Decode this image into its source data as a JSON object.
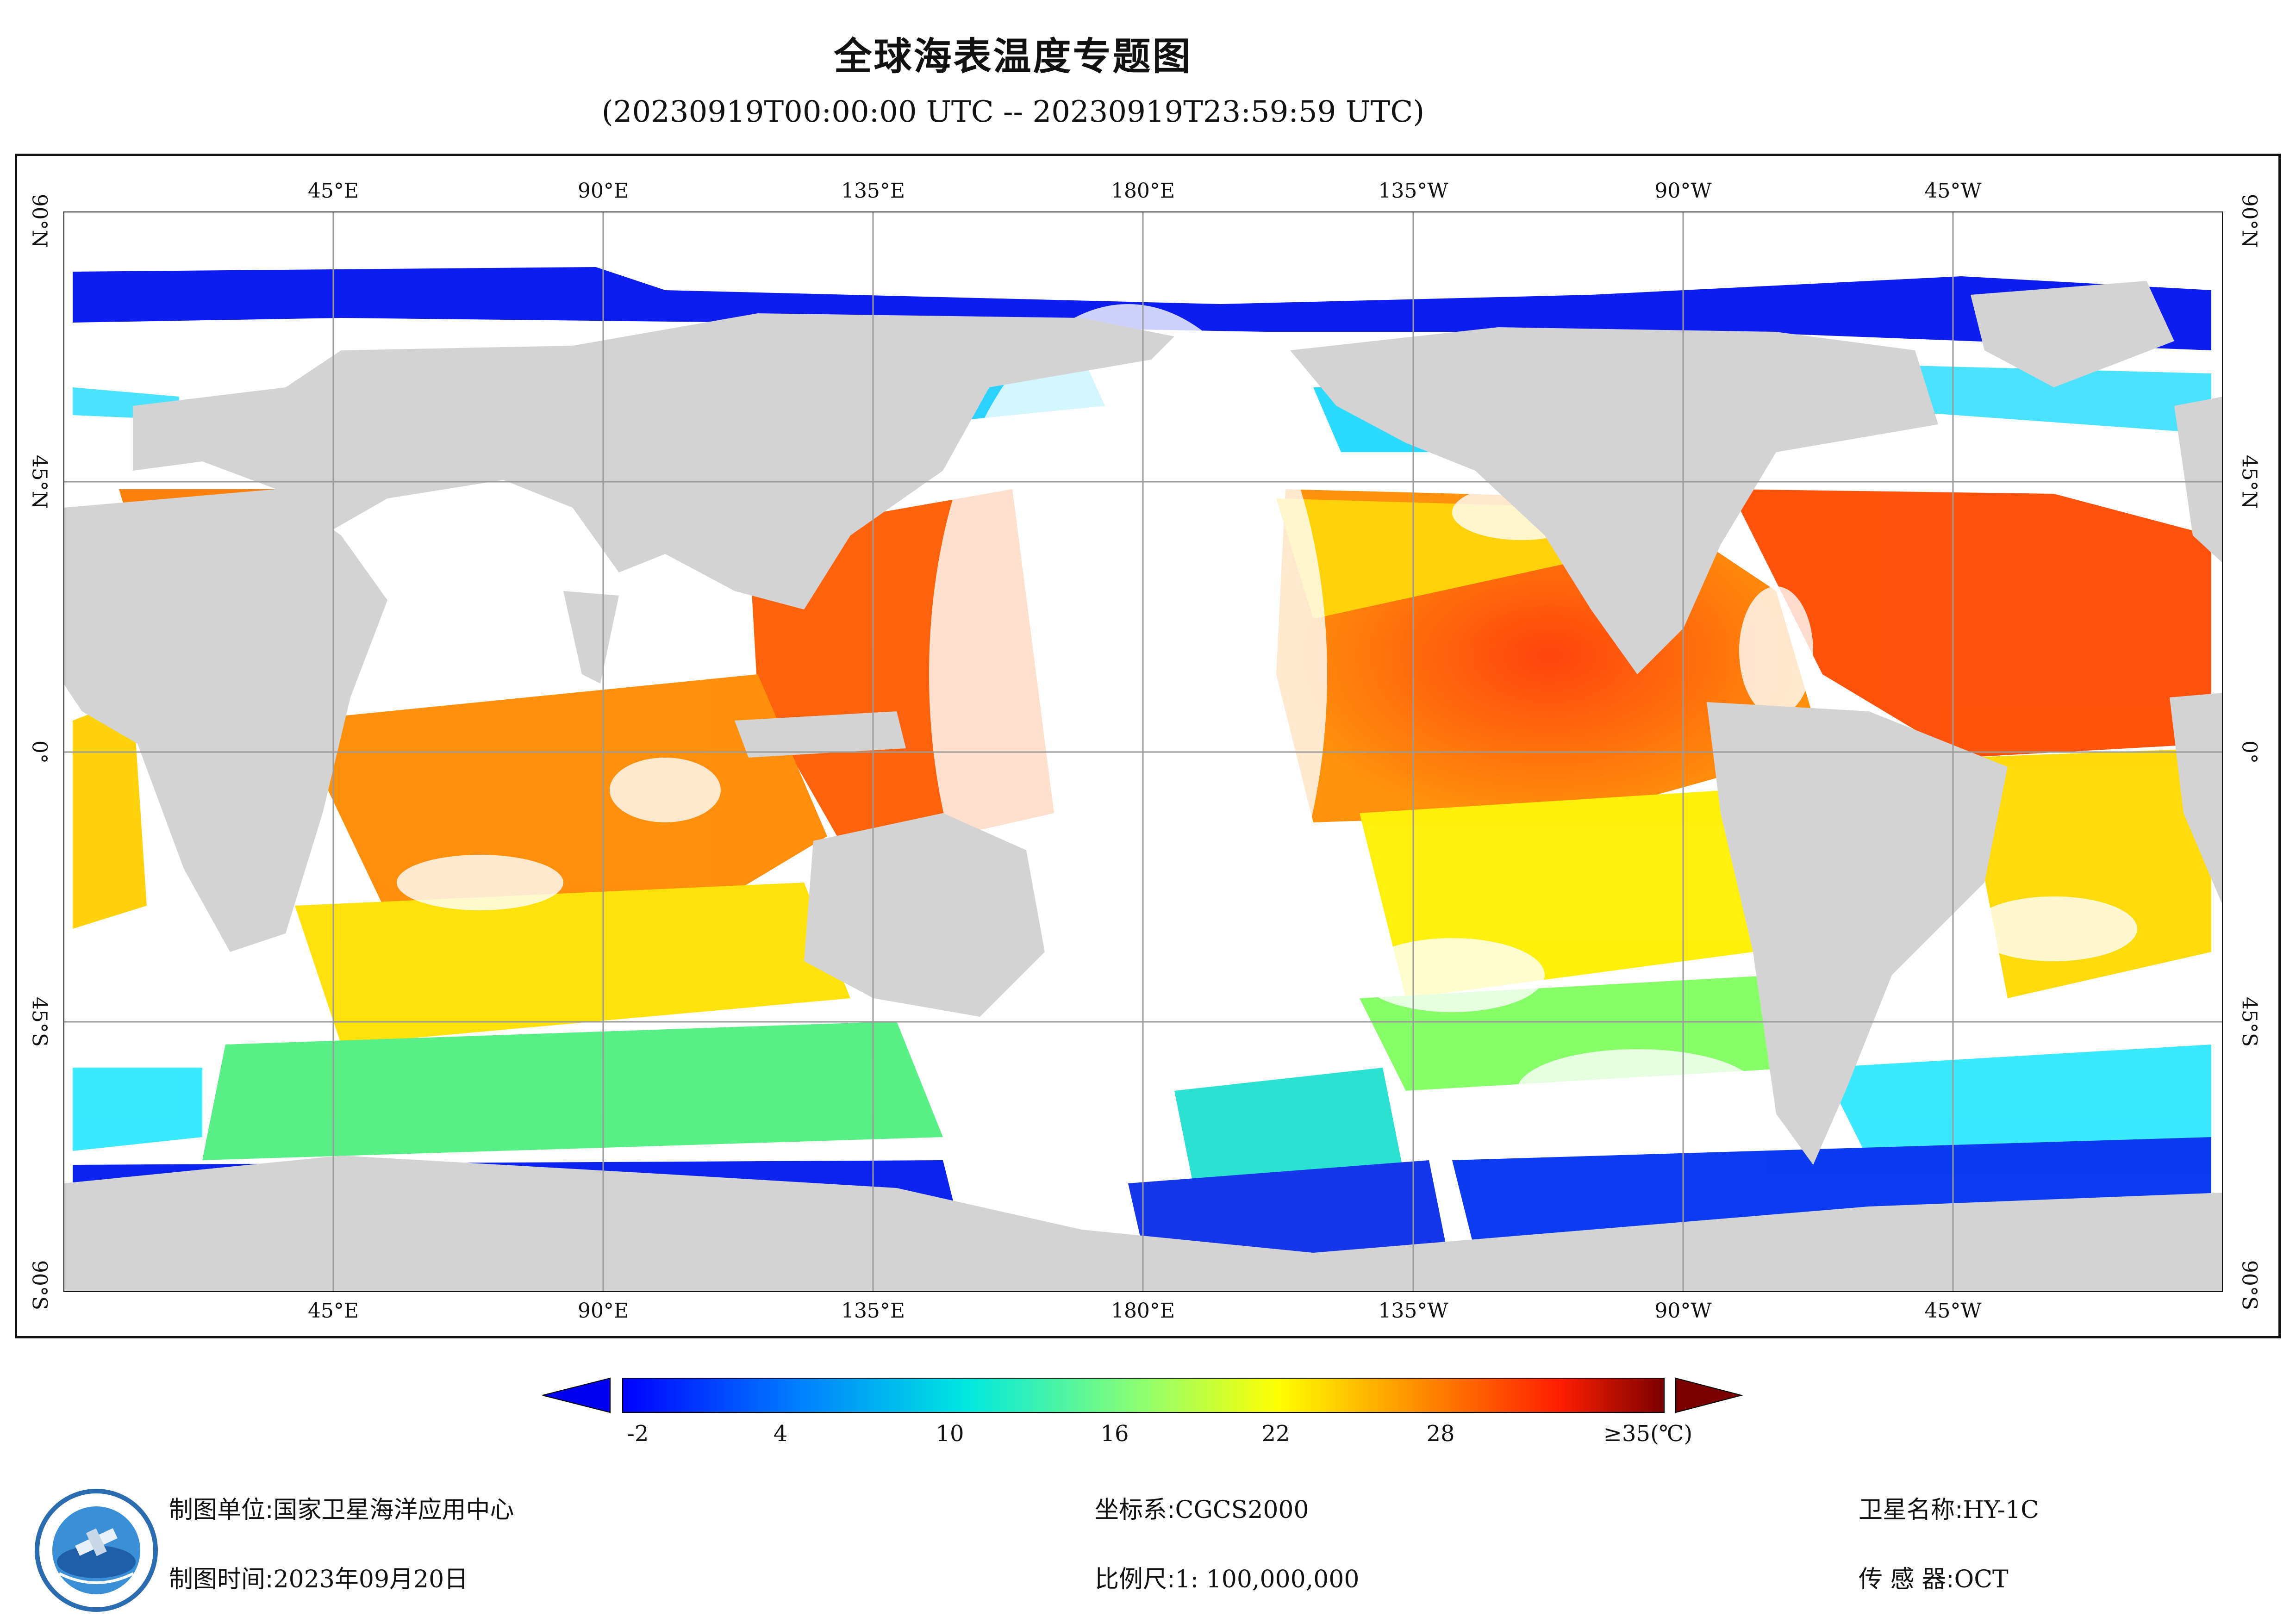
{
  "header": {
    "title": "全球海表温度专题图",
    "subtitle": "(20230919T00:00:00 UTC -- 20230919T23:59:59 UTC)"
  },
  "map": {
    "longitude_labels": [
      "45°E",
      "90°E",
      "135°E",
      "180°E",
      "135°W",
      "90°W",
      "45°W"
    ],
    "latitude_labels": [
      "90°N",
      "45°N",
      "0°",
      "45°S",
      "90°S"
    ],
    "colors": {
      "land": "#d3d3d3",
      "no_data": "#ffffff",
      "gridline": "#9a9a9a"
    }
  },
  "legend": {
    "tick_labels": [
      "-2",
      "4",
      "10",
      "16",
      "22",
      "28",
      "≥35(℃)"
    ],
    "colors": [
      "#0000ff",
      "#0080ff",
      "#00e0e0",
      "#80ff80",
      "#ffff00",
      "#ff8000",
      "#ff2000",
      "#800000"
    ]
  },
  "footer": {
    "org_label": "制图单位:",
    "org_value": "国家卫星海洋应用中心",
    "date_label": "制图时间:",
    "date_value": "2023年09月20日",
    "crs_label": "坐标系:",
    "crs_value": "CGCS2000",
    "scale_label": "比例尺:",
    "scale_value": "1: 100,000,000",
    "satellite_label": "卫星名称:",
    "satellite_value": "HY-1C",
    "sensor_label": "传 感 器:",
    "sensor_value": "OCT"
  }
}
